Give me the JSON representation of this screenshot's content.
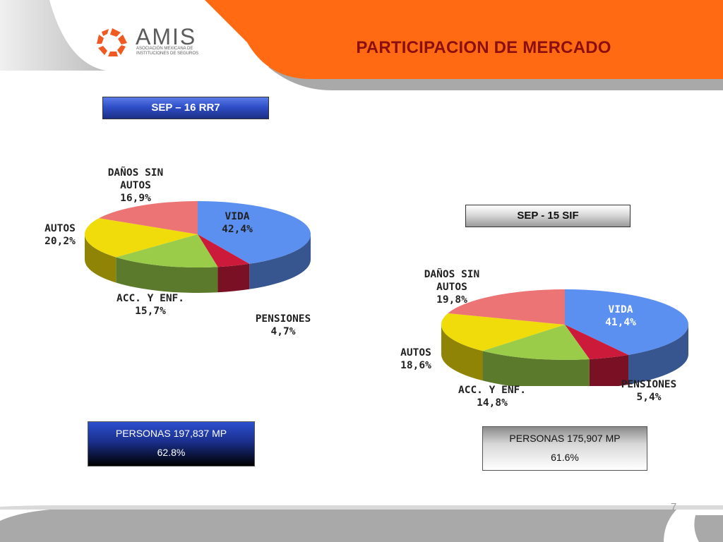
{
  "header": {
    "title": "PARTICIPACION DE MERCADO",
    "logo_text": "AMIS",
    "logo_subtitle_line1": "ASOCIACIÓN MEXICANA DE",
    "logo_subtitle_line2": "INSTITUCIONES DE SEGUROS",
    "accent_color": "#ff6a13",
    "gray_color": "#a6a6a6"
  },
  "chart_data": [
    {
      "type": "pie",
      "title": "SEP – 16 RR7",
      "slices": [
        {
          "label": "VIDA",
          "value": 42.4,
          "display": "42,4%",
          "color": "#5b8ff0"
        },
        {
          "label": "PENSIONES",
          "value": 4.7,
          "display": "4,7%",
          "color": "#cc1a3a"
        },
        {
          "label": "ACC. Y ENF.",
          "value": 15.7,
          "display": "15,7%",
          "color": "#9acc4a"
        },
        {
          "label": "AUTOS",
          "value": 20.2,
          "display": "20,2%",
          "color": "#f0dc0a"
        },
        {
          "label": "DAÑOS SIN AUTOS",
          "value": 16.9,
          "display": "16,9%",
          "color": "#ec7474"
        }
      ],
      "label_parts": {
        "vida": [
          "VIDA",
          "42,4%"
        ],
        "pensiones": [
          "PENSIONES",
          "4,7%"
        ],
        "acc": [
          "ACC. Y ENF.",
          "15,7%"
        ],
        "autos": [
          "AUTOS",
          "20,2%"
        ],
        "danos": [
          "DAÑOS SIN",
          "AUTOS",
          "16,9%"
        ]
      },
      "summary": {
        "line1": "PERSONAS  197,837 MP",
        "line2": "62.8%"
      }
    },
    {
      "type": "pie",
      "title": "SEP -  15 SIF",
      "slices": [
        {
          "label": "VIDA",
          "value": 41.4,
          "display": "41,4%",
          "color": "#5b8ff0"
        },
        {
          "label": "PENSIONES",
          "value": 5.4,
          "display": "5,4%",
          "color": "#cc1a3a"
        },
        {
          "label": "ACC. Y ENF.",
          "value": 14.8,
          "display": "14,8%",
          "color": "#9acc4a"
        },
        {
          "label": "AUTOS",
          "value": 18.6,
          "display": "18,6%",
          "color": "#f0dc0a"
        },
        {
          "label": "DAÑOS SIN AUTOS",
          "value": 19.8,
          "display": "19,8%",
          "color": "#ec7474"
        }
      ],
      "label_parts": {
        "vida": [
          "VIDA",
          "41,4%"
        ],
        "pensiones": [
          "PENSIONES",
          "5,4%"
        ],
        "acc": [
          "ACC. Y ENF.",
          "14,8%"
        ],
        "autos": [
          "AUTOS",
          "18,6%"
        ],
        "danos": [
          "DAÑOS SIN",
          "AUTOS",
          "19,8%"
        ]
      },
      "summary": {
        "line1": "PERSONAS  175,907 MP",
        "line2": "61.6%"
      }
    }
  ],
  "footer": {
    "page_number": "7"
  }
}
